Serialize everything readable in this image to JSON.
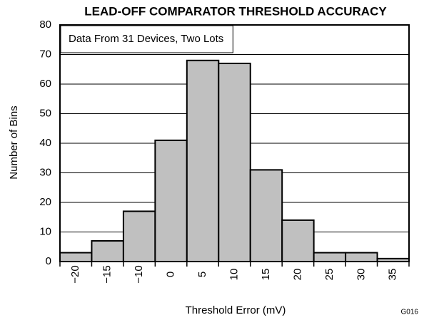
{
  "chart_data": {
    "type": "bar",
    "title": "LEAD-OFF COMPARATOR THRESHOLD ACCURACY",
    "annotation": "Data From 31 Devices, Two Lots",
    "x_label": "Threshold Error (mV)",
    "y_label": "Number of Bins",
    "footnote": "G016",
    "categories": [
      "−20",
      "−15",
      "−10",
      "0",
      "5",
      "10",
      "15",
      "20",
      "25",
      "30",
      "35"
    ],
    "values": [
      3,
      7,
      17,
      41,
      68,
      67,
      31,
      14,
      3,
      3,
      1
    ],
    "color": "#c0c0c0",
    "ylim": [
      0,
      80
    ],
    "yticks": [
      0,
      10,
      20,
      30,
      40,
      50,
      60,
      70,
      80
    ],
    "grid": true
  }
}
